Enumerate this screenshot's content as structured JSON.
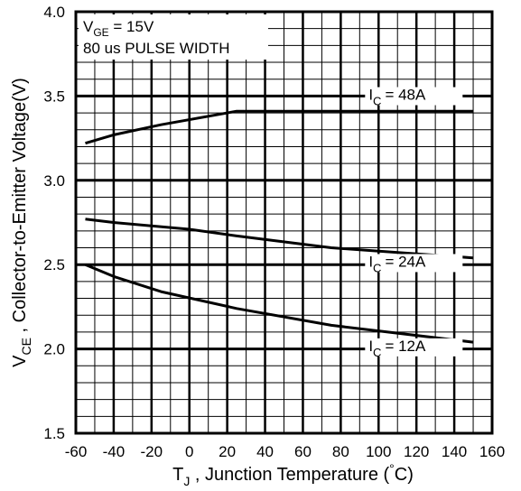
{
  "chart_data": {
    "type": "line",
    "xlabel_parts": {
      "main": "T",
      "sub": "J",
      "rest": " , Junction Temperature (",
      "deg": "°",
      "end": "C)"
    },
    "ylabel_parts": {
      "main": "V",
      "sub": "CE",
      "rest": " , Collector-to-Emitter Voltage(V)"
    },
    "conditions": {
      "line1": {
        "main": "V",
        "sub": "GE",
        "rest": " = 15V"
      },
      "line2": "80 us PULSE WIDTH"
    },
    "xlim": [
      -60,
      160
    ],
    "ylim": [
      1.5,
      4.0
    ],
    "x_ticks": [
      "-60",
      "-40",
      "-20",
      "0",
      "20",
      "40",
      "60",
      "80",
      "100",
      "120",
      "140",
      "160"
    ],
    "y_ticks": [
      "1.5",
      "2.0",
      "2.5",
      "3.0",
      "3.5",
      "4.0"
    ],
    "grid": true,
    "series": [
      {
        "name": "48A",
        "label": {
          "main": "I",
          "sub": "C",
          "value": "=  48A"
        },
        "points": [
          [
            -55,
            3.22
          ],
          [
            -40,
            3.27
          ],
          [
            -15,
            3.33
          ],
          [
            25,
            3.41
          ],
          [
            150,
            3.41
          ]
        ]
      },
      {
        "name": "24A",
        "label": {
          "main": "I",
          "sub": "C",
          "value": "=  24A"
        },
        "points": [
          [
            -55,
            2.77
          ],
          [
            -40,
            2.75
          ],
          [
            0,
            2.71
          ],
          [
            25,
            2.67
          ],
          [
            75,
            2.6
          ],
          [
            150,
            2.54
          ]
        ]
      },
      {
        "name": "12A",
        "label": {
          "main": "I",
          "sub": "C",
          "value": "=  12A"
        },
        "points": [
          [
            -55,
            2.5
          ],
          [
            -40,
            2.43
          ],
          [
            -15,
            2.34
          ],
          [
            25,
            2.24
          ],
          [
            75,
            2.14
          ],
          [
            150,
            2.04
          ]
        ]
      }
    ]
  }
}
